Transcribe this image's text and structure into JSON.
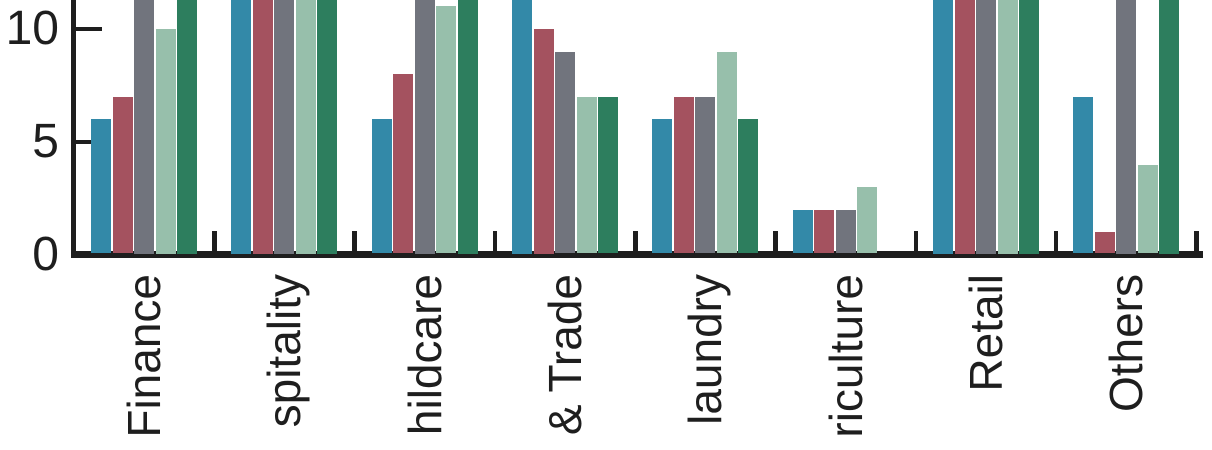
{
  "chart_data": {
    "type": "bar",
    "orientation": "vertical-grouped",
    "title": "",
    "xlabel": "",
    "ylabel": "",
    "categories": [
      "Finance",
      "spitality",
      "hildcare",
      "& Trade",
      "laundry",
      "riculture",
      "Retail",
      "Others"
    ],
    "categories_note": "category labels are rotated 90 degrees and cropped by the bottom edge of the image; only the listed characters are visible",
    "series": [
      {
        "name": "teal-blue",
        "color": "#3389a8",
        "values": [
          6,
          null,
          6,
          null,
          6,
          2,
          null,
          7
        ]
      },
      {
        "name": "maroon-red",
        "color": "#a4525f",
        "values": [
          7,
          null,
          8,
          10,
          7,
          2,
          null,
          1
        ]
      },
      {
        "name": "gray",
        "color": "#71747d",
        "values": [
          null,
          null,
          null,
          9,
          7,
          2,
          null,
          null
        ]
      },
      {
        "name": "pale-green",
        "color": "#97bfab",
        "values": [
          10,
          null,
          11,
          7,
          9,
          3,
          null,
          4
        ]
      },
      {
        "name": "dark-green",
        "color": "#2d7e5e",
        "values": [
          null,
          null,
          null,
          7,
          6,
          0,
          null,
          null
        ]
      }
    ],
    "clipped_note": "null = bar is clipped by the cropped top edge of the image (value greater than ~11.3); 0 = no bar drawn",
    "y_ticks": [
      "0",
      "5",
      "10"
    ],
    "y_tick_values": [
      0,
      5,
      10
    ],
    "y_visible_range": [
      0,
      11.3
    ],
    "grid": false,
    "legend": "none visible",
    "axis_color": "#1e1e1e",
    "background": "#ffffff"
  }
}
